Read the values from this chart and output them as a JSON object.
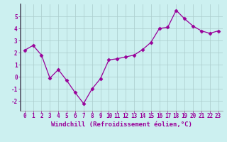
{
  "x": [
    0,
    1,
    2,
    3,
    4,
    5,
    6,
    7,
    8,
    9,
    10,
    11,
    12,
    13,
    14,
    15,
    16,
    17,
    18,
    19,
    20,
    21,
    22,
    23
  ],
  "y": [
    2.2,
    2.6,
    1.8,
    -0.1,
    0.6,
    -0.3,
    -1.3,
    -2.2,
    -1.0,
    -0.15,
    1.4,
    1.5,
    1.65,
    1.8,
    2.25,
    2.85,
    4.0,
    4.1,
    5.5,
    4.8,
    4.2,
    3.8,
    3.6,
    3.8
  ],
  "line_color": "#990099",
  "marker": "D",
  "marker_size": 2.5,
  "bg_color": "#ccf0f0",
  "grid_color": "#aacccc",
  "xlabel": "Windchill (Refroidissement éolien,°C)",
  "ylabel": "",
  "yticks": [
    -2,
    -1,
    0,
    1,
    2,
    3,
    4,
    5
  ],
  "xticks": [
    0,
    1,
    2,
    3,
    4,
    5,
    6,
    7,
    8,
    9,
    10,
    11,
    12,
    13,
    14,
    15,
    16,
    17,
    18,
    19,
    20,
    21,
    22,
    23
  ],
  "ylim": [
    -2.8,
    6.0
  ],
  "xlim": [
    -0.5,
    23.5
  ],
  "tick_label_size": 5.5,
  "xlabel_size": 6.5,
  "spine_color": "#888888",
  "left_spine_color": "#555566"
}
